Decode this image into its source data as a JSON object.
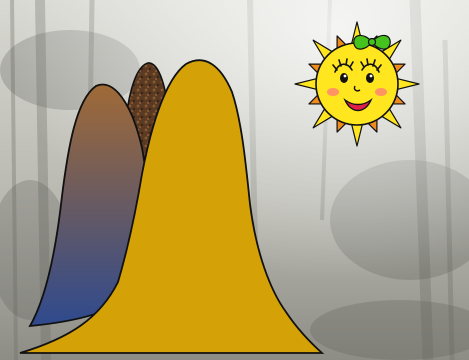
{
  "scene": {
    "background": "misty-forest-photo",
    "palette": {
      "mist_light": "#d9d9d3",
      "mist_mid": "#b9b9b1",
      "mist_dark": "#8d8d86",
      "mountain_front": "#d4a106",
      "mountain_left_top": "#a06a37",
      "mountain_left_bottom": "#2f4a8e",
      "mountain_rock": "#5a3a22",
      "sun_body": "#ffe61e",
      "sun_ray_yellow": "#ffe61e",
      "sun_ray_orange": "#f08c1e",
      "sun_cheek": "#ff7a7a",
      "sun_mouth": "#e0204a",
      "bow": "#46c21f",
      "outline": "#111111"
    },
    "elements": [
      {
        "name": "misty-forest-background"
      },
      {
        "name": "brown-rocky-mountain"
      },
      {
        "name": "gradient-mountain"
      },
      {
        "name": "golden-mountain"
      },
      {
        "name": "smiling-sun-icon"
      },
      {
        "name": "green-bow-icon"
      }
    ]
  }
}
